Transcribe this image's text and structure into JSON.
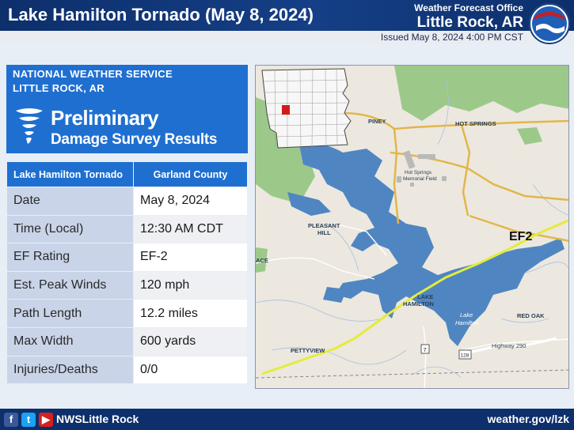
{
  "header": {
    "title": "Lake Hamilton Tornado (May 8, 2024)",
    "office_line1": "Weather Forecast Office",
    "office_line2": "Little Rock, AR",
    "issued": "Issued May 8, 2024 4:00 PM CST"
  },
  "info_box": {
    "agency": "NATIONAL WEATHER SERVICE",
    "city": "LITTLE ROCK, AR",
    "heading1": "Preliminary",
    "heading2": "Damage Survey Results"
  },
  "table": {
    "header_left": "Lake Hamilton Tornado",
    "header_right": "Garland County",
    "rows": [
      {
        "label": "Date",
        "value": "May 8, 2024"
      },
      {
        "label": "Time (Local)",
        "value": "12:30 AM CDT"
      },
      {
        "label": "EF Rating",
        "value": "EF-2"
      },
      {
        "label": "Est. Peak Winds",
        "value": "120 mph"
      },
      {
        "label": "Path Length",
        "value": "12.2 miles"
      },
      {
        "label": "Max Width",
        "value": "600 yards"
      },
      {
        "label": "Injuries/Deaths",
        "value": "0/0"
      }
    ]
  },
  "map": {
    "labels": {
      "piney": "PINEY",
      "hot_springs": "HOT SPRINGS",
      "airport1": "Hot Springs",
      "airport2": "Memorial Field",
      "pleasant1": "PLEASANT",
      "pleasant2": "HILL",
      "ace": "ACE",
      "lake_ham1": "LAKE",
      "lake_ham2": "HAMILTON",
      "lake1": "Lake",
      "lake2": "Hamilton",
      "red_oak": "RED OAK",
      "highway": "Highway 290",
      "pettyview": "PETTYVIEW",
      "route7": "7",
      "route128": "128",
      "ef_label": "EF2"
    },
    "colors": {
      "water": "#4f86c2",
      "forest": "#9cc98a",
      "track": "#e4ec3a",
      "roads": "#e2b64a"
    }
  },
  "footer": {
    "fb": "f",
    "tw": "t",
    "yt": "▶",
    "handle": "NWSLittle Rock",
    "website": "weather.gov/lzk"
  }
}
